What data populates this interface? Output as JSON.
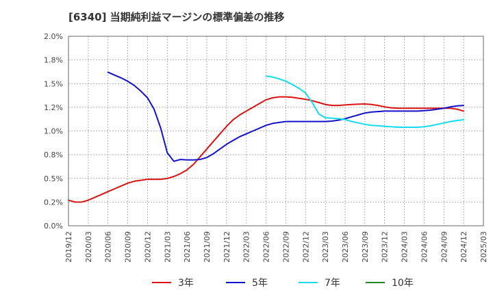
{
  "title": "[6340]  当期純利益マージンの標準偏差の推移",
  "chart_data": {
    "type": "line",
    "title": "[6340]  当期純利益マージンの標準偏差の推移",
    "xlabel": "",
    "ylabel": "",
    "ylim": [
      0,
      2.0
    ],
    "grid": true,
    "legend_position": "bottom",
    "x_ticks": [
      "2019/12",
      "2020/03",
      "2020/06",
      "2020/09",
      "2020/12",
      "2021/03",
      "2021/06",
      "2021/09",
      "2021/12",
      "2022/03",
      "2022/06",
      "2022/09",
      "2022/12",
      "2023/03",
      "2023/06",
      "2023/09",
      "2023/12",
      "2024/03",
      "2024/06",
      "2024/09",
      "2024/12",
      "2025/03"
    ],
    "y_ticks": [
      "0.0%",
      "0.2%",
      "0.5%",
      "0.8%",
      "1.0%",
      "1.2%",
      "1.5%",
      "1.8%",
      "2.0%"
    ],
    "series": [
      {
        "name": "3年",
        "color": "#dd1111",
        "points": [
          [
            "2019/12",
            0.27
          ],
          [
            "2020/01",
            0.25
          ],
          [
            "2020/02",
            0.25
          ],
          [
            "2020/03",
            0.27
          ],
          [
            "2020/04",
            0.3
          ],
          [
            "2020/05",
            0.33
          ],
          [
            "2020/06",
            0.36
          ],
          [
            "2020/07",
            0.39
          ],
          [
            "2020/08",
            0.42
          ],
          [
            "2020/09",
            0.45
          ],
          [
            "2020/10",
            0.47
          ],
          [
            "2020/11",
            0.48
          ],
          [
            "2020/12",
            0.49
          ],
          [
            "2021/01",
            0.49
          ],
          [
            "2021/02",
            0.49
          ],
          [
            "2021/03",
            0.5
          ],
          [
            "2021/04",
            0.52
          ],
          [
            "2021/05",
            0.55
          ],
          [
            "2021/06",
            0.59
          ],
          [
            "2021/07",
            0.65
          ],
          [
            "2021/08",
            0.73
          ],
          [
            "2021/09",
            0.81
          ],
          [
            "2021/10",
            0.89
          ],
          [
            "2021/11",
            0.97
          ],
          [
            "2021/12",
            1.05
          ],
          [
            "2022/01",
            1.12
          ],
          [
            "2022/02",
            1.17
          ],
          [
            "2022/03",
            1.21
          ],
          [
            "2022/04",
            1.25
          ],
          [
            "2022/05",
            1.29
          ],
          [
            "2022/06",
            1.33
          ],
          [
            "2022/07",
            1.35
          ],
          [
            "2022/08",
            1.36
          ],
          [
            "2022/09",
            1.36
          ],
          [
            "2022/10",
            1.355
          ],
          [
            "2022/11",
            1.345
          ],
          [
            "2022/12",
            1.335
          ],
          [
            "2023/01",
            1.32
          ],
          [
            "2023/02",
            1.3
          ],
          [
            "2023/03",
            1.28
          ],
          [
            "2023/04",
            1.27
          ],
          [
            "2023/05",
            1.27
          ],
          [
            "2023/06",
            1.275
          ],
          [
            "2023/07",
            1.28
          ],
          [
            "2023/08",
            1.283
          ],
          [
            "2023/09",
            1.285
          ],
          [
            "2023/10",
            1.28
          ],
          [
            "2023/11",
            1.27
          ],
          [
            "2023/12",
            1.255
          ],
          [
            "2024/01",
            1.245
          ],
          [
            "2024/02",
            1.24
          ],
          [
            "2024/03",
            1.24
          ],
          [
            "2024/04",
            1.24
          ],
          [
            "2024/05",
            1.24
          ],
          [
            "2024/06",
            1.24
          ],
          [
            "2024/07",
            1.24
          ],
          [
            "2024/08",
            1.24
          ],
          [
            "2024/09",
            1.24
          ],
          [
            "2024/10",
            1.24
          ],
          [
            "2024/11",
            1.23
          ],
          [
            "2024/12",
            1.21
          ]
        ]
      },
      {
        "name": "5年",
        "color": "#1111cc",
        "points": [
          [
            "2020/06",
            1.62
          ],
          [
            "2020/07",
            1.59
          ],
          [
            "2020/08",
            1.56
          ],
          [
            "2020/09",
            1.525
          ],
          [
            "2020/10",
            1.48
          ],
          [
            "2020/11",
            1.42
          ],
          [
            "2020/12",
            1.35
          ],
          [
            "2021/01",
            1.23
          ],
          [
            "2021/02",
            1.03
          ],
          [
            "2021/03",
            0.77
          ],
          [
            "2021/04",
            0.68
          ],
          [
            "2021/05",
            0.7
          ],
          [
            "2021/06",
            0.695
          ],
          [
            "2021/07",
            0.695
          ],
          [
            "2021/08",
            0.7
          ],
          [
            "2021/09",
            0.72
          ],
          [
            "2021/10",
            0.76
          ],
          [
            "2021/11",
            0.81
          ],
          [
            "2021/12",
            0.86
          ],
          [
            "2022/01",
            0.9
          ],
          [
            "2022/02",
            0.94
          ],
          [
            "2022/03",
            0.97
          ],
          [
            "2022/04",
            1.0
          ],
          [
            "2022/05",
            1.03
          ],
          [
            "2022/06",
            1.06
          ],
          [
            "2022/07",
            1.08
          ],
          [
            "2022/08",
            1.09
          ],
          [
            "2022/09",
            1.1
          ],
          [
            "2022/10",
            1.1
          ],
          [
            "2022/11",
            1.1
          ],
          [
            "2022/12",
            1.1
          ],
          [
            "2023/01",
            1.1
          ],
          [
            "2023/02",
            1.1
          ],
          [
            "2023/03",
            1.1
          ],
          [
            "2023/04",
            1.105
          ],
          [
            "2023/05",
            1.115
          ],
          [
            "2023/06",
            1.13
          ],
          [
            "2023/07",
            1.15
          ],
          [
            "2023/08",
            1.17
          ],
          [
            "2023/09",
            1.19
          ],
          [
            "2023/10",
            1.2
          ],
          [
            "2023/11",
            1.205
          ],
          [
            "2023/12",
            1.21
          ],
          [
            "2024/01",
            1.21
          ],
          [
            "2024/02",
            1.21
          ],
          [
            "2024/03",
            1.21
          ],
          [
            "2024/04",
            1.21
          ],
          [
            "2024/05",
            1.21
          ],
          [
            "2024/06",
            1.215
          ],
          [
            "2024/07",
            1.22
          ],
          [
            "2024/08",
            1.23
          ],
          [
            "2024/09",
            1.24
          ],
          [
            "2024/10",
            1.255
          ],
          [
            "2024/11",
            1.265
          ],
          [
            "2024/12",
            1.27
          ]
        ]
      },
      {
        "name": "7年",
        "color": "#11ddee",
        "points": [
          [
            "2022/06",
            1.58
          ],
          [
            "2022/07",
            1.57
          ],
          [
            "2022/08",
            1.55
          ],
          [
            "2022/09",
            1.525
          ],
          [
            "2022/10",
            1.49
          ],
          [
            "2022/11",
            1.45
          ],
          [
            "2022/12",
            1.4
          ],
          [
            "2023/01",
            1.3
          ],
          [
            "2023/02",
            1.18
          ],
          [
            "2023/03",
            1.14
          ],
          [
            "2023/04",
            1.135
          ],
          [
            "2023/05",
            1.13
          ],
          [
            "2023/06",
            1.12
          ],
          [
            "2023/07",
            1.1
          ],
          [
            "2023/08",
            1.085
          ],
          [
            "2023/09",
            1.07
          ],
          [
            "2023/10",
            1.06
          ],
          [
            "2023/11",
            1.055
          ],
          [
            "2023/12",
            1.05
          ],
          [
            "2024/01",
            1.045
          ],
          [
            "2024/02",
            1.04
          ],
          [
            "2024/03",
            1.04
          ],
          [
            "2024/04",
            1.04
          ],
          [
            "2024/05",
            1.04
          ],
          [
            "2024/06",
            1.045
          ],
          [
            "2024/07",
            1.055
          ],
          [
            "2024/08",
            1.07
          ],
          [
            "2024/09",
            1.085
          ],
          [
            "2024/10",
            1.1
          ],
          [
            "2024/11",
            1.11
          ],
          [
            "2024/12",
            1.12
          ]
        ]
      },
      {
        "name": "10年",
        "color": "#228822",
        "points": []
      }
    ]
  }
}
